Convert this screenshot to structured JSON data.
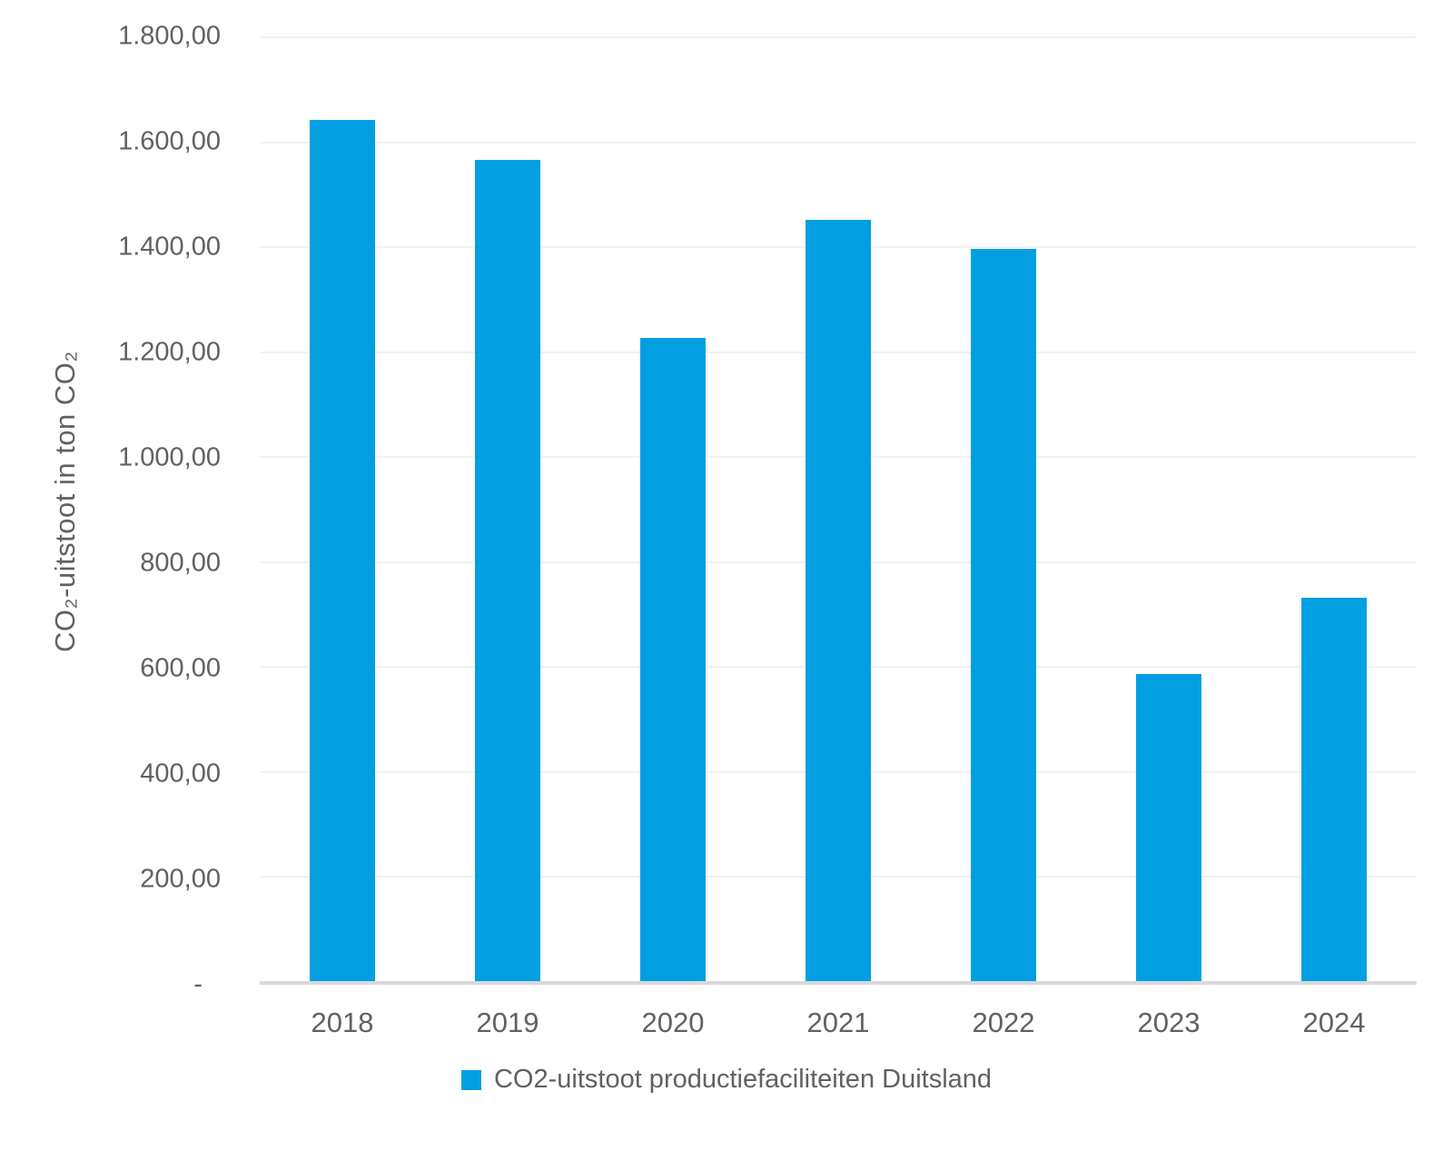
{
  "colors": {
    "bar": "#029FE2",
    "text": "#616161",
    "grid": "#F1F1F1",
    "axis": "#D9D9D9",
    "background": "#FFFFFF"
  },
  "chart_data": {
    "type": "bar",
    "title": "",
    "categories": [
      "2018",
      "2019",
      "2020",
      "2021",
      "2022",
      "2023",
      "2024"
    ],
    "values": [
      1640,
      1565,
      1225,
      1450,
      1395,
      585,
      730
    ],
    "series_name": "CO2-uitstoot productiefaciliteiten Duitsland",
    "xlabel": "",
    "ylabel": "CO₂-uitstoot in ton CO₂",
    "ylim": [
      0,
      1800
    ],
    "ytick_step": 200,
    "yticks": [
      {
        "value": 1800,
        "label": "1.800,00"
      },
      {
        "value": 1600,
        "label": "1.600,00"
      },
      {
        "value": 1400,
        "label": "1.400,00"
      },
      {
        "value": 1200,
        "label": "1.200,00"
      },
      {
        "value": 1000,
        "label": "1.000,00"
      },
      {
        "value": 800,
        "label": "800,00"
      },
      {
        "value": 600,
        "label": "600,00"
      },
      {
        "value": 400,
        "label": "400,00"
      },
      {
        "value": 200,
        "label": "200,00"
      },
      {
        "value": 0,
        "label": "-"
      }
    ],
    "grid": true,
    "legend_position": "bottom",
    "legend_marker": "square"
  }
}
